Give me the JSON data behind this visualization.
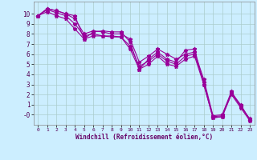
{
  "background_color": "#cceeff",
  "grid_color": "#aacccc",
  "line_color": "#990099",
  "xlabel": "Windchill (Refroidissement éolien,°C)",
  "xlim_min": -0.5,
  "xlim_max": 23.5,
  "ylim_min": -1.0,
  "ylim_max": 11.2,
  "xtick_labels": [
    "0",
    "1",
    "2",
    "3",
    "4",
    "5",
    "6",
    "7",
    "8",
    "9",
    "10",
    "11",
    "12",
    "13",
    "14",
    "15",
    "16",
    "17",
    "18",
    "19",
    "20",
    "21",
    "22",
    "23"
  ],
  "ytick_values": [
    0,
    1,
    2,
    3,
    4,
    5,
    6,
    7,
    8,
    9,
    10
  ],
  "ytick_labels": [
    "-0",
    "1",
    "2",
    "3",
    "4",
    "5",
    "6",
    "7",
    "8",
    "9",
    "10"
  ],
  "series": [
    [
      9.8,
      10.5,
      10.3,
      10.0,
      9.8,
      7.5,
      8.2,
      8.3,
      8.2,
      8.2,
      7.2,
      4.5,
      5.5,
      6.2,
      5.5,
      5.2,
      6.4,
      6.5,
      3.0,
      -0.3,
      -0.2,
      2.2,
      1.0,
      -0.5
    ],
    [
      9.8,
      10.5,
      10.3,
      10.0,
      9.5,
      8.0,
      8.3,
      8.2,
      8.0,
      8.0,
      7.5,
      5.2,
      5.8,
      6.5,
      6.0,
      5.5,
      6.0,
      6.2,
      3.5,
      -0.1,
      0.0,
      2.3,
      0.8,
      -0.4
    ],
    [
      9.8,
      10.4,
      10.1,
      9.8,
      9.0,
      7.8,
      8.0,
      7.8,
      7.8,
      7.7,
      6.8,
      4.8,
      5.3,
      6.0,
      5.3,
      5.0,
      5.8,
      6.0,
      3.2,
      -0.2,
      -0.1,
      2.1,
      0.9,
      -0.5
    ],
    [
      9.8,
      10.2,
      9.8,
      9.5,
      8.5,
      7.5,
      7.8,
      7.8,
      7.7,
      7.7,
      6.5,
      4.5,
      5.0,
      5.8,
      5.0,
      4.8,
      5.5,
      5.8,
      3.0,
      -0.3,
      -0.2,
      2.0,
      0.7,
      -0.6
    ]
  ]
}
